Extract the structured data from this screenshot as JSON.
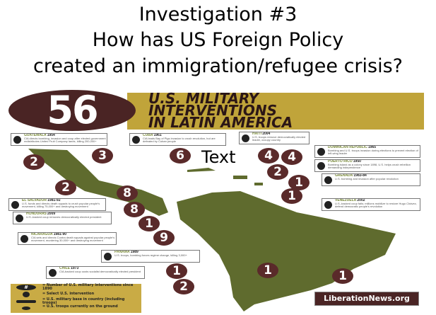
{
  "slide": {
    "title_lines": [
      "Investigation #3",
      "How has US Foreign Policy",
      "created an immigration/refugee crisis?"
    ],
    "overlay_text": "Text"
  },
  "infographic": {
    "count": "56",
    "headline": [
      "U.S. MILITARY",
      "INTERVENTIONS",
      "IN LATIN AMERICA"
    ],
    "badges": [
      "2",
      "3",
      "6",
      "4",
      "4",
      "2",
      "1",
      "1",
      "2",
      "8",
      "8",
      "1",
      "9",
      "1",
      "2",
      "1",
      "1"
    ],
    "boxes": [
      {
        "country": "GUATEMALA",
        "year": "1954",
        "desc": "CIA directs bombing, invasion and coup after elected government redistributes United Fruit Company lands, killing 200,000+"
      },
      {
        "country": "CUBA",
        "year": "1961",
        "desc": "CIA leads Bay of Pigs invasion to crush revolution, but are defeated by Cuban people"
      },
      {
        "country": "HAITI",
        "year": "2004",
        "desc": "U.S. troops remove democratically elected leader, occupy country"
      },
      {
        "country": "DOMINICAN REPUBLIC",
        "year": "1965",
        "desc": "Bombing and U.S. troops invasion during elections to prevent election of left-wing leader"
      },
      {
        "country": "PUERTO RICO",
        "year": "1950",
        "desc": "Bombing island as a colony since 1898, U.S. helps crush rebellion demanding independence"
      },
      {
        "country": "GRENADA",
        "year": "1983-84",
        "desc": "U.S. bombing and invasion after popular revolution"
      },
      {
        "country": "VENEZUELA",
        "year": "2002",
        "desc": "U.S.-backed coup fails; millions mobilize to restore Hugo Chávez, defend democratic people's revolution"
      },
      {
        "country": "EL SALVADOR",
        "year": "1981-92",
        "desc": "U.S. funds and directs death squads to crush popular people's movement, killing 75,000+ and destroying movement"
      },
      {
        "country": "HONDURAS",
        "year": "2009",
        "desc": "U.S.-backed coup removes democratically elected president"
      },
      {
        "country": "NICARAGUA",
        "year": "1981-90",
        "desc": "CIA sets and directs Contra death squads against popular people's movement, murdering 30,000+ and destroying movement"
      },
      {
        "country": "PANAMA",
        "year": "1989",
        "desc": "U.S. troops, bombing forces regime change, killing 3,000+"
      },
      {
        "country": "CHILE",
        "year": "1973",
        "desc": "CIA-backed coup ousts socialist democratically elected president"
      }
    ],
    "legend": [
      {
        "symbol": "#",
        "text": "= Number of U.S. military interventions since 1890"
      },
      {
        "symbol": "skull-icon",
        "text": "= Select U.S. intervention"
      },
      {
        "symbol": "tank-icon",
        "text": "= U.S. military base in country (including troops)"
      },
      {
        "symbol": "soldier-icon",
        "text": "= U.S. troops currently on the ground"
      }
    ],
    "source": "LiberationNews.org",
    "colors": {
      "gold": "#c0a43a",
      "maroon": "#5a2a2a",
      "olive": "#5f6b2e"
    }
  }
}
